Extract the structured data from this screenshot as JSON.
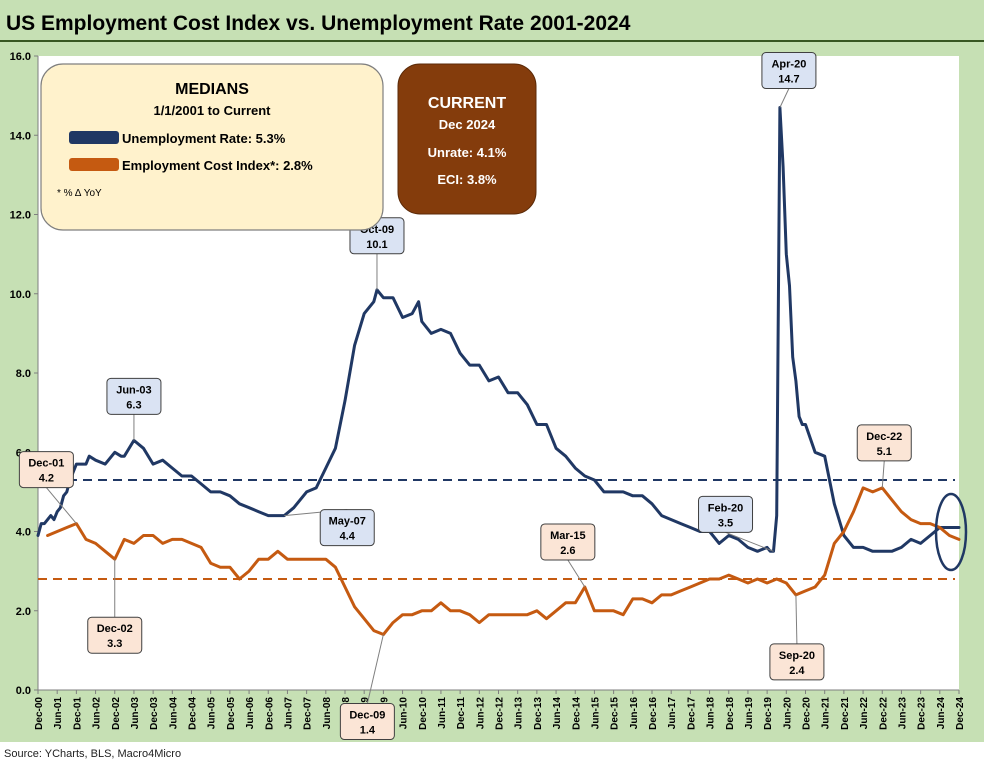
{
  "title": "US Employment Cost Index vs. Unemployment Rate 2001-2024",
  "source": "Source: YCharts, BLS, Macro4Micro",
  "colors": {
    "unemployment": "#203864",
    "eci": "#c55a11",
    "frame": "#c6e0b4",
    "medians_box": "#fff2cc",
    "current_box": "#843c0c",
    "label_blue": "#dae3f3",
    "label_orange": "#fbe5d6"
  },
  "medians_box": {
    "title": "MEDIANS",
    "subtitle": "1/1/2001 to Current",
    "unemployment_label": "Unemployment Rate: 5.3%",
    "eci_label": "Employment Cost Index*: 2.8%",
    "footnote": "* % Δ YoY"
  },
  "current_box": {
    "title": "CURRENT",
    "date": "Dec 2024",
    "unrate": "Unrate: 4.1%",
    "eci": "ECI:  3.8%"
  },
  "chart_data": {
    "type": "line",
    "x_start": "2000-12",
    "x_end": "2024-12",
    "ylim": [
      0,
      16
    ],
    "yticks": [
      "0.0",
      "2.0",
      "4.0",
      "6.0",
      "8.0",
      "10.0",
      "12.0",
      "14.0",
      "16.0"
    ],
    "xticks": [
      "Dec-00",
      "Jun-01",
      "Dec-01",
      "Jun-02",
      "Dec-02",
      "Jun-03",
      "Dec-03",
      "Jun-04",
      "Dec-04",
      "Jun-05",
      "Dec-05",
      "Jun-06",
      "Dec-06",
      "Jun-07",
      "Dec-07",
      "Jun-08",
      "Dec-08",
      "Jun-09",
      "Dec-09",
      "Jun-10",
      "Dec-10",
      "Jun-11",
      "Dec-11",
      "Jun-12",
      "Dec-12",
      "Jun-13",
      "Dec-13",
      "Jun-14",
      "Dec-14",
      "Jun-15",
      "Dec-15",
      "Jun-16",
      "Dec-16",
      "Jun-17",
      "Dec-17",
      "Jun-18",
      "Dec-18",
      "Jun-19",
      "Dec-19",
      "Jun-20",
      "Dec-20",
      "Jun-21",
      "Dec-21",
      "Jun-22",
      "Dec-22",
      "Jun-23",
      "Dec-23",
      "Jun-24",
      "Dec-24"
    ],
    "grid": false,
    "series": [
      {
        "name": "Unemployment Rate",
        "points": [
          [
            "2000-12",
            3.9
          ],
          [
            "2001-01",
            4.2
          ],
          [
            "2001-02",
            4.2
          ],
          [
            "2001-03",
            4.3
          ],
          [
            "2001-04",
            4.4
          ],
          [
            "2001-05",
            4.3
          ],
          [
            "2001-06",
            4.5
          ],
          [
            "2001-07",
            4.6
          ],
          [
            "2001-08",
            4.9
          ],
          [
            "2001-09",
            5.0
          ],
          [
            "2001-10",
            5.3
          ],
          [
            "2001-11",
            5.5
          ],
          [
            "2001-12",
            5.7
          ],
          [
            "2002-03",
            5.7
          ],
          [
            "2002-04",
            5.9
          ],
          [
            "2002-06",
            5.8
          ],
          [
            "2002-09",
            5.7
          ],
          [
            "2002-12",
            6.0
          ],
          [
            "2003-02",
            5.9
          ],
          [
            "2003-03",
            5.9
          ],
          [
            "2003-06",
            6.3
          ],
          [
            "2003-09",
            6.1
          ],
          [
            "2003-12",
            5.7
          ],
          [
            "2004-03",
            5.8
          ],
          [
            "2004-06",
            5.6
          ],
          [
            "2004-09",
            5.4
          ],
          [
            "2004-12",
            5.4
          ],
          [
            "2005-03",
            5.2
          ],
          [
            "2005-06",
            5.0
          ],
          [
            "2005-09",
            5.0
          ],
          [
            "2005-12",
            4.9
          ],
          [
            "2006-03",
            4.7
          ],
          [
            "2006-06",
            4.6
          ],
          [
            "2006-09",
            4.5
          ],
          [
            "2006-12",
            4.4
          ],
          [
            "2007-03",
            4.4
          ],
          [
            "2007-05",
            4.4
          ],
          [
            "2007-08",
            4.6
          ],
          [
            "2007-12",
            5.0
          ],
          [
            "2008-03",
            5.1
          ],
          [
            "2008-06",
            5.6
          ],
          [
            "2008-09",
            6.1
          ],
          [
            "2008-12",
            7.3
          ],
          [
            "2009-03",
            8.7
          ],
          [
            "2009-06",
            9.5
          ],
          [
            "2009-09",
            9.8
          ],
          [
            "2009-10",
            10.1
          ],
          [
            "2009-12",
            9.9
          ],
          [
            "2010-03",
            9.9
          ],
          [
            "2010-06",
            9.4
          ],
          [
            "2010-09",
            9.5
          ],
          [
            "2010-11",
            9.8
          ],
          [
            "2010-12",
            9.3
          ],
          [
            "2011-03",
            9.0
          ],
          [
            "2011-06",
            9.1
          ],
          [
            "2011-09",
            9.0
          ],
          [
            "2011-12",
            8.5
          ],
          [
            "2012-03",
            8.2
          ],
          [
            "2012-06",
            8.2
          ],
          [
            "2012-09",
            7.8
          ],
          [
            "2012-12",
            7.9
          ],
          [
            "2013-03",
            7.5
          ],
          [
            "2013-06",
            7.5
          ],
          [
            "2013-09",
            7.2
          ],
          [
            "2013-12",
            6.7
          ],
          [
            "2014-03",
            6.7
          ],
          [
            "2014-06",
            6.1
          ],
          [
            "2014-09",
            5.9
          ],
          [
            "2014-12",
            5.6
          ],
          [
            "2015-03",
            5.4
          ],
          [
            "2015-06",
            5.3
          ],
          [
            "2015-09",
            5.0
          ],
          [
            "2015-12",
            5.0
          ],
          [
            "2016-03",
            5.0
          ],
          [
            "2016-06",
            4.9
          ],
          [
            "2016-09",
            4.9
          ],
          [
            "2016-12",
            4.7
          ],
          [
            "2017-03",
            4.4
          ],
          [
            "2017-06",
            4.3
          ],
          [
            "2017-09",
            4.2
          ],
          [
            "2017-12",
            4.1
          ],
          [
            "2018-03",
            4.0
          ],
          [
            "2018-06",
            4.0
          ],
          [
            "2018-09",
            3.7
          ],
          [
            "2018-12",
            3.9
          ],
          [
            "2019-03",
            3.8
          ],
          [
            "2019-06",
            3.6
          ],
          [
            "2019-09",
            3.5
          ],
          [
            "2019-12",
            3.6
          ],
          [
            "2020-01",
            3.5
          ],
          [
            "2020-02",
            3.5
          ],
          [
            "2020-03",
            4.4
          ],
          [
            "2020-04",
            14.7
          ],
          [
            "2020-05",
            13.2
          ],
          [
            "2020-06",
            11.0
          ],
          [
            "2020-07",
            10.2
          ],
          [
            "2020-08",
            8.4
          ],
          [
            "2020-09",
            7.8
          ],
          [
            "2020-10",
            6.9
          ],
          [
            "2020-11",
            6.7
          ],
          [
            "2020-12",
            6.7
          ],
          [
            "2021-03",
            6.0
          ],
          [
            "2021-06",
            5.9
          ],
          [
            "2021-09",
            4.7
          ],
          [
            "2021-12",
            3.9
          ],
          [
            "2022-03",
            3.6
          ],
          [
            "2022-06",
            3.6
          ],
          [
            "2022-09",
            3.5
          ],
          [
            "2022-12",
            3.5
          ],
          [
            "2023-03",
            3.5
          ],
          [
            "2023-06",
            3.6
          ],
          [
            "2023-09",
            3.8
          ],
          [
            "2023-12",
            3.7
          ],
          [
            "2024-03",
            3.9
          ],
          [
            "2024-06",
            4.1
          ],
          [
            "2024-09",
            4.1
          ],
          [
            "2024-12",
            4.1
          ]
        ]
      },
      {
        "name": "Employment Cost Index",
        "points": [
          [
            "2001-03",
            3.9
          ],
          [
            "2001-06",
            4.0
          ],
          [
            "2001-09",
            4.1
          ],
          [
            "2001-12",
            4.2
          ],
          [
            "2002-03",
            3.8
          ],
          [
            "2002-06",
            3.7
          ],
          [
            "2002-09",
            3.5
          ],
          [
            "2002-12",
            3.3
          ],
          [
            "2003-03",
            3.8
          ],
          [
            "2003-06",
            3.7
          ],
          [
            "2003-09",
            3.9
          ],
          [
            "2003-12",
            3.9
          ],
          [
            "2004-03",
            3.7
          ],
          [
            "2004-06",
            3.8
          ],
          [
            "2004-09",
            3.8
          ],
          [
            "2004-12",
            3.7
          ],
          [
            "2005-03",
            3.6
          ],
          [
            "2005-06",
            3.2
          ],
          [
            "2005-09",
            3.1
          ],
          [
            "2005-12",
            3.1
          ],
          [
            "2006-03",
            2.8
          ],
          [
            "2006-06",
            3.0
          ],
          [
            "2006-09",
            3.3
          ],
          [
            "2006-12",
            3.3
          ],
          [
            "2007-03",
            3.5
          ],
          [
            "2007-06",
            3.3
          ],
          [
            "2007-09",
            3.3
          ],
          [
            "2007-12",
            3.3
          ],
          [
            "2008-03",
            3.3
          ],
          [
            "2008-06",
            3.3
          ],
          [
            "2008-09",
            3.1
          ],
          [
            "2008-12",
            2.6
          ],
          [
            "2009-03",
            2.1
          ],
          [
            "2009-06",
            1.8
          ],
          [
            "2009-09",
            1.5
          ],
          [
            "2009-12",
            1.4
          ],
          [
            "2010-03",
            1.7
          ],
          [
            "2010-06",
            1.9
          ],
          [
            "2010-09",
            1.9
          ],
          [
            "2010-12",
            2.0
          ],
          [
            "2011-03",
            2.0
          ],
          [
            "2011-06",
            2.2
          ],
          [
            "2011-09",
            2.0
          ],
          [
            "2011-12",
            2.0
          ],
          [
            "2012-03",
            1.9
          ],
          [
            "2012-06",
            1.7
          ],
          [
            "2012-09",
            1.9
          ],
          [
            "2012-12",
            1.9
          ],
          [
            "2013-03",
            1.9
          ],
          [
            "2013-06",
            1.9
          ],
          [
            "2013-09",
            1.9
          ],
          [
            "2013-12",
            2.0
          ],
          [
            "2014-03",
            1.8
          ],
          [
            "2014-06",
            2.0
          ],
          [
            "2014-09",
            2.2
          ],
          [
            "2014-12",
            2.2
          ],
          [
            "2015-03",
            2.6
          ],
          [
            "2015-06",
            2.0
          ],
          [
            "2015-09",
            2.0
          ],
          [
            "2015-12",
            2.0
          ],
          [
            "2016-03",
            1.9
          ],
          [
            "2016-06",
            2.3
          ],
          [
            "2016-09",
            2.3
          ],
          [
            "2016-12",
            2.2
          ],
          [
            "2017-03",
            2.4
          ],
          [
            "2017-06",
            2.4
          ],
          [
            "2017-09",
            2.5
          ],
          [
            "2017-12",
            2.6
          ],
          [
            "2018-03",
            2.7
          ],
          [
            "2018-06",
            2.8
          ],
          [
            "2018-09",
            2.8
          ],
          [
            "2018-12",
            2.9
          ],
          [
            "2019-03",
            2.8
          ],
          [
            "2019-06",
            2.7
          ],
          [
            "2019-09",
            2.8
          ],
          [
            "2019-12",
            2.7
          ],
          [
            "2020-03",
            2.8
          ],
          [
            "2020-06",
            2.7
          ],
          [
            "2020-09",
            2.4
          ],
          [
            "2020-12",
            2.5
          ],
          [
            "2021-03",
            2.6
          ],
          [
            "2021-06",
            2.9
          ],
          [
            "2021-09",
            3.7
          ],
          [
            "2021-12",
            4.0
          ],
          [
            "2022-03",
            4.5
          ],
          [
            "2022-06",
            5.1
          ],
          [
            "2022-09",
            5.0
          ],
          [
            "2022-12",
            5.1
          ],
          [
            "2023-03",
            4.8
          ],
          [
            "2023-06",
            4.5
          ],
          [
            "2023-09",
            4.3
          ],
          [
            "2023-12",
            4.2
          ],
          [
            "2024-03",
            4.2
          ],
          [
            "2024-06",
            4.1
          ],
          [
            "2024-09",
            3.9
          ],
          [
            "2024-12",
            3.8
          ]
        ]
      }
    ],
    "medians": [
      {
        "series": "Unemployment Rate",
        "value": 5.3
      },
      {
        "series": "Employment Cost Index",
        "value": 2.8
      }
    ],
    "annotations": [
      {
        "series": "unemployment",
        "date": "2003-06",
        "value": 6.3,
        "label": "Jun-03",
        "text": "6.3"
      },
      {
        "series": "unemployment",
        "date": "2007-05",
        "value": 4.4,
        "label": "May-07",
        "text": "4.4"
      },
      {
        "series": "unemployment",
        "date": "2009-10",
        "value": 10.1,
        "label": "Oct-09",
        "text": "10.1"
      },
      {
        "series": "unemployment",
        "date": "2020-02",
        "value": 3.5,
        "label": "Feb-20",
        "text": "3.5"
      },
      {
        "series": "unemployment",
        "date": "2020-04",
        "value": 14.7,
        "label": "Apr-20",
        "text": "14.7"
      },
      {
        "series": "eci",
        "date": "2001-12",
        "value": 4.2,
        "label": "Dec-01",
        "text": "4.2"
      },
      {
        "series": "eci",
        "date": "2002-12",
        "value": 3.3,
        "label": "Dec-02",
        "text": "3.3"
      },
      {
        "series": "eci",
        "date": "2009-12",
        "value": 1.4,
        "label": "Dec-09",
        "text": "1.4"
      },
      {
        "series": "eci",
        "date": "2015-03",
        "value": 2.6,
        "label": "Mar-15",
        "text": "2.6"
      },
      {
        "series": "eci",
        "date": "2020-09",
        "value": 2.4,
        "label": "Sep-20",
        "text": "2.4"
      },
      {
        "series": "eci",
        "date": "2022-12",
        "value": 5.1,
        "label": "Dec-22",
        "text": "5.1"
      }
    ]
  }
}
